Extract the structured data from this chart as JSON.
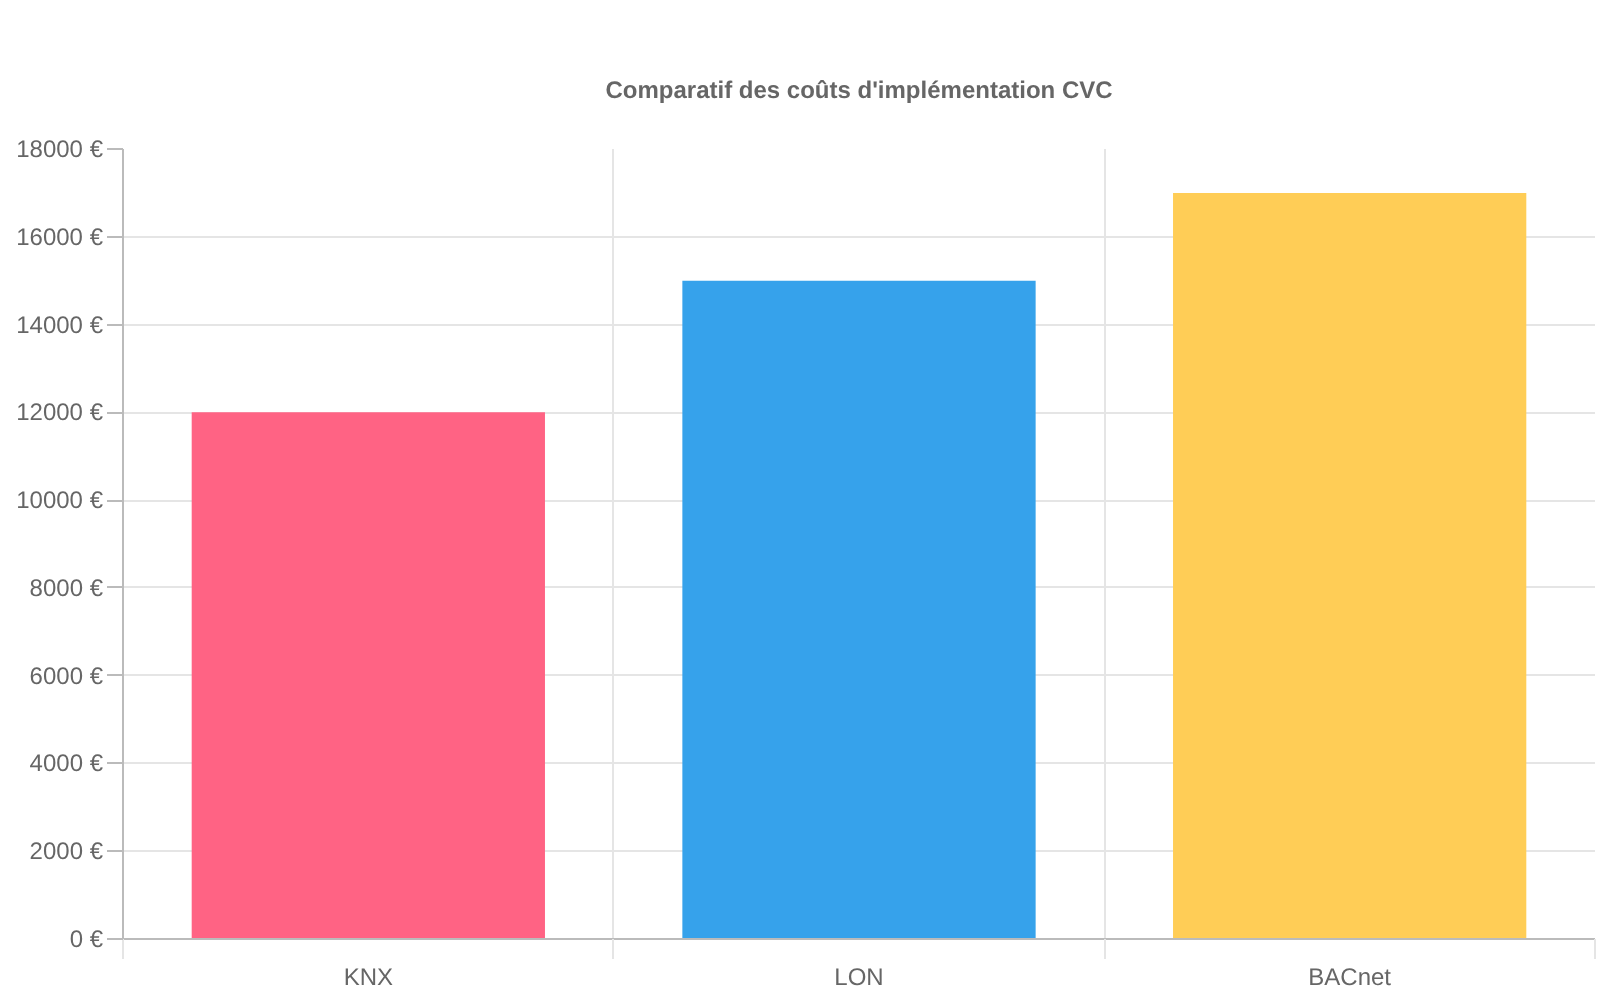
{
  "chart_data": {
    "type": "bar",
    "title": "Comparatif des coûts d'implémentation CVC",
    "categories": [
      "KNX",
      "LON",
      "BACnet"
    ],
    "values": [
      12000,
      15000,
      17000
    ],
    "colors": [
      "#ff6384",
      "#36a2eb",
      "#ffcd56"
    ],
    "ylim": [
      0,
      18000
    ],
    "yticks": [
      {
        "value": 0,
        "label": "0 €"
      },
      {
        "value": 2000,
        "label": "2000 €"
      },
      {
        "value": 4000,
        "label": "4000 €"
      },
      {
        "value": 6000,
        "label": "6000 €"
      },
      {
        "value": 8000,
        "label": "8000 €"
      },
      {
        "value": 10000,
        "label": "10000 €"
      },
      {
        "value": 12000,
        "label": "12000 €"
      },
      {
        "value": 14000,
        "label": "14000 €"
      },
      {
        "value": 16000,
        "label": "16000 €"
      },
      {
        "value": 18000,
        "label": "18000 €"
      }
    ],
    "grid": true
  }
}
